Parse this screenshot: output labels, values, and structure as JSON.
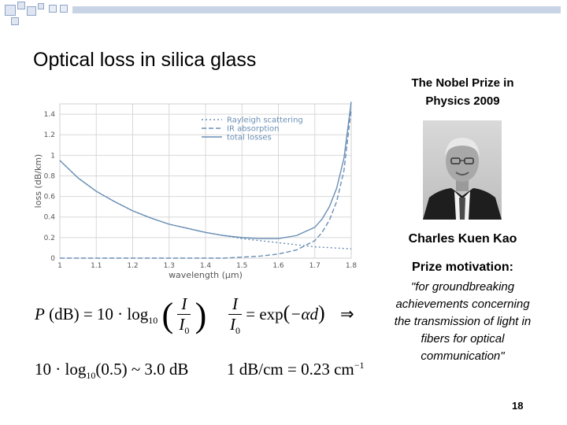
{
  "slide": {
    "title": "Optical loss in silica glass",
    "page_number": "18"
  },
  "nobel": {
    "heading": "The Nobel Prize in Physics 2009",
    "laureate": "Charles Kuen Kao",
    "motivation_heading": "Prize motivation:",
    "motivation_text": "\"for groundbreaking achievements concerning the transmission of light in fibers for optical communication\""
  },
  "equations": {
    "eq1": {
      "lhs": "P",
      "unit": "(dB)",
      "eq": "= 10 · log",
      "sub": "10",
      "frac_num": "I",
      "frac_den": "I",
      "frac_den_sub": "0"
    },
    "eq2": {
      "frac_num": "I",
      "frac_den": "I",
      "frac_den_sub": "0",
      "rhs": "= exp",
      "arg": "−αd",
      "implies": "⇒"
    },
    "eq3": {
      "text_a": "10 · log",
      "sub": "10",
      "text_b": "(0.5) ~ 3.0 dB"
    },
    "eq4": {
      "text": "1 dB/cm = 0.23 cm",
      "sup": "−1"
    }
  },
  "chart_data": {
    "type": "line",
    "xlabel": "wavelength (µm)",
    "ylabel": "loss (dB/km)",
    "xlim": [
      1.0,
      1.8
    ],
    "ylim": [
      0,
      1.5
    ],
    "x_ticks": [
      "1",
      "1.1",
      "1.2",
      "1.3",
      "1.4",
      "1.5",
      "1.6",
      "1.7",
      "1.8"
    ],
    "y_ticks": [
      "0",
      "0.2",
      "0.4",
      "0.6",
      "0.8",
      "1",
      "1.2",
      "1.4"
    ],
    "grid": true,
    "legend_position": "top-right",
    "colors": {
      "line": "#6a8fb5",
      "grid": "#d8d8d8",
      "frame": "#cfcfcf"
    },
    "series": [
      {
        "name": "Rayleigh scattering",
        "style": "dotted",
        "x": [
          1.0,
          1.05,
          1.1,
          1.15,
          1.2,
          1.25,
          1.3,
          1.35,
          1.4,
          1.45,
          1.5,
          1.55,
          1.6,
          1.65,
          1.7,
          1.75,
          1.8
        ],
        "y": [
          0.95,
          0.78,
          0.65,
          0.55,
          0.46,
          0.39,
          0.33,
          0.29,
          0.25,
          0.22,
          0.19,
          0.17,
          0.15,
          0.13,
          0.11,
          0.1,
          0.09
        ]
      },
      {
        "name": "IR absorption",
        "style": "dashed",
        "x": [
          1.0,
          1.1,
          1.2,
          1.3,
          1.4,
          1.45,
          1.5,
          1.55,
          1.6,
          1.65,
          1.7,
          1.72,
          1.74,
          1.76,
          1.78,
          1.8
        ],
        "y": [
          0.0,
          0.0,
          0.0,
          0.0,
          0.0,
          0.0,
          0.01,
          0.02,
          0.04,
          0.08,
          0.17,
          0.25,
          0.37,
          0.55,
          0.85,
          1.45
        ]
      },
      {
        "name": "total losses",
        "style": "solid",
        "x": [
          1.0,
          1.05,
          1.1,
          1.15,
          1.2,
          1.25,
          1.3,
          1.35,
          1.4,
          1.45,
          1.5,
          1.55,
          1.6,
          1.65,
          1.7,
          1.72,
          1.74,
          1.76,
          1.78,
          1.8
        ],
        "y": [
          0.95,
          0.78,
          0.65,
          0.55,
          0.46,
          0.39,
          0.33,
          0.29,
          0.25,
          0.22,
          0.2,
          0.19,
          0.19,
          0.22,
          0.3,
          0.38,
          0.5,
          0.68,
          0.97,
          1.52
        ]
      }
    ]
  }
}
